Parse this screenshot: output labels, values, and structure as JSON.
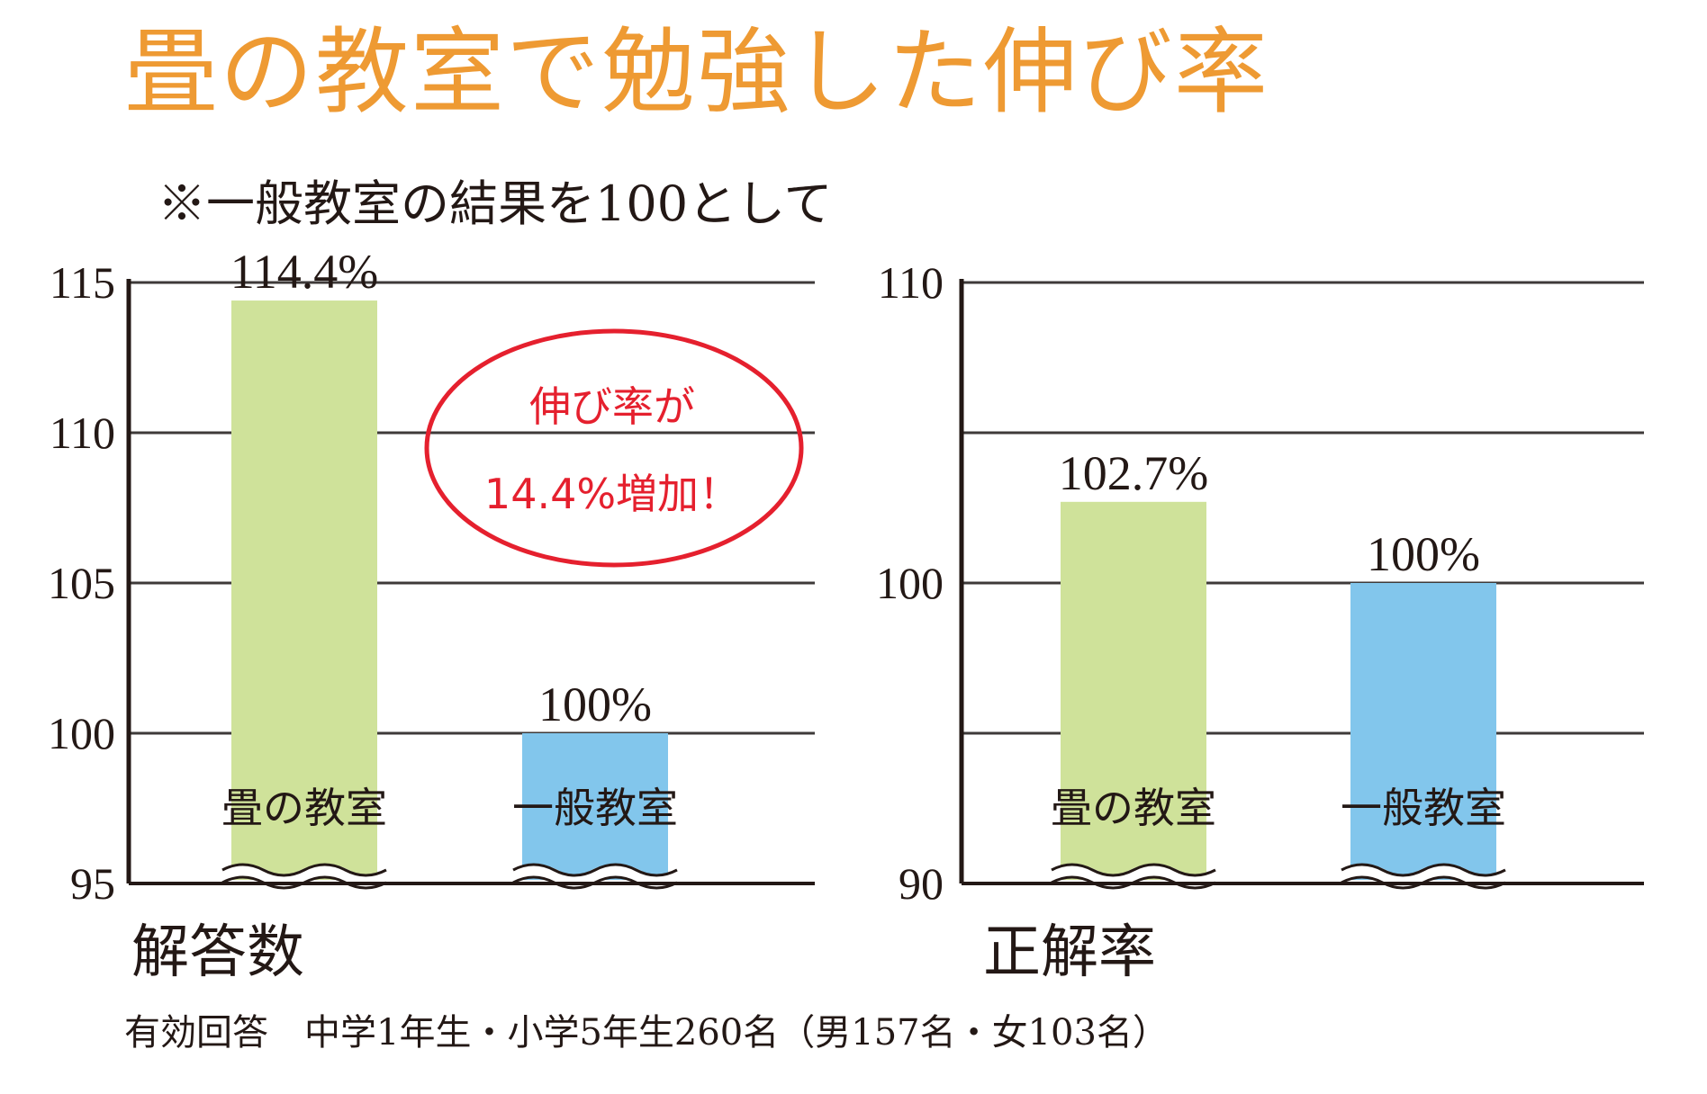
{
  "title": "畳の教室で勉強した伸び率",
  "note": "※一般教室の結果を100として",
  "footnote": "有効回答　中学1年生・小学5年生260名（男157名・女103名）",
  "colors": {
    "title": "#ee9a33",
    "tatami": "#cfe29a",
    "general": "#82c6ec",
    "callout": "#e5202e",
    "grid": "#3e3a39"
  },
  "callout": {
    "line1": "伸び率が",
    "line2": "14.4%増加！"
  },
  "chart_data": [
    {
      "type": "bar",
      "title": "",
      "xlabel": "解答数",
      "ylabel": "",
      "ylim": [
        95,
        115
      ],
      "yticks": [
        95,
        100,
        105,
        110,
        115
      ],
      "axis_break": true,
      "categories": [
        "畳の教室",
        "一般教室"
      ],
      "values": [
        114.4,
        100
      ],
      "value_labels": [
        "114.4%",
        "100%"
      ],
      "colors": [
        "#cfe29a",
        "#82c6ec"
      ]
    },
    {
      "type": "bar",
      "title": "",
      "xlabel": "正解率",
      "ylabel": "",
      "ylim": [
        90,
        110
      ],
      "yticks": [
        90,
        100,
        110
      ],
      "gridlines": [
        90,
        95,
        100,
        105,
        110
      ],
      "axis_break": true,
      "categories": [
        "畳の教室",
        "一般教室"
      ],
      "values": [
        102.7,
        100
      ],
      "value_labels": [
        "102.7%",
        "100%"
      ],
      "colors": [
        "#cfe29a",
        "#82c6ec"
      ]
    }
  ]
}
